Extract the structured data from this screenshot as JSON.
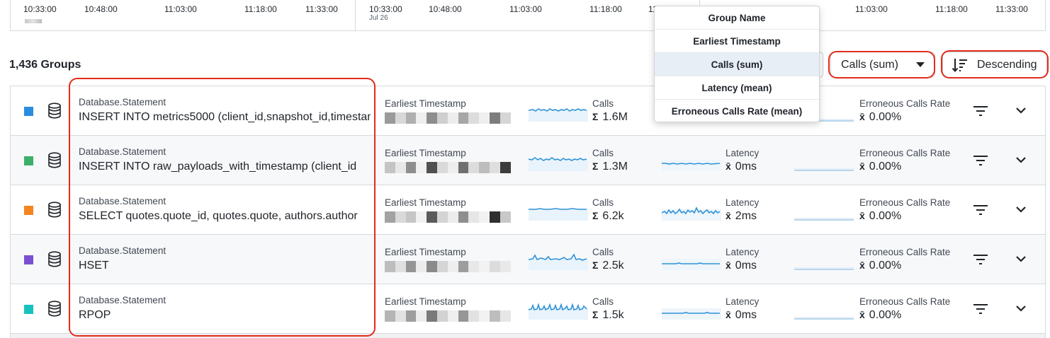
{
  "timeline_left": {
    "ticks": [
      "10:33:00",
      "10:48:00",
      "11:03:00",
      "11:18:00",
      "11:33:00"
    ]
  },
  "timeline_right": {
    "ticks": [
      "10:33:00",
      "10:48:00",
      "11:03:00",
      "11:18:00",
      "11:33:00"
    ],
    "sub": "Jul 26",
    "ticks_far": [
      "11:03:00",
      "11:18:00",
      "11:33:00"
    ]
  },
  "header": {
    "groups_count": "1,436 Groups",
    "sort_field": "Calls (sum)",
    "sort_order": "Descending"
  },
  "dropdown": {
    "options": [
      "Group Name",
      "Earliest Timestamp",
      "Calls (sum)",
      "Latency (mean)",
      "Erroneous Calls Rate (mean)"
    ],
    "selected": "Calls (sum)"
  },
  "columns": {
    "name_label": "Database.Statement",
    "timestamp_label": "Earliest Timestamp",
    "calls_label": "Calls",
    "latency_label": "Latency",
    "error_label": "Erroneous Calls Rate",
    "sum_symbol": "Σ",
    "mean_symbol": "x̄"
  },
  "colors": {
    "accent_red": "#e32b19",
    "spark_blue": "#2d93d8",
    "swatches": [
      "#2a8ee0",
      "#3cb06a",
      "#f5851f",
      "#7b4fd1",
      "#17c2bd"
    ]
  },
  "rows": [
    {
      "name": "INSERT INTO metrics5000 (client_id,snapshot_id,timestamp",
      "calls": "1.6M",
      "latency": "",
      "error_rate": "0.00%"
    },
    {
      "name": "INSERT INTO raw_payloads_with_timestamp (client_id",
      "calls": "1.3M",
      "latency": "0ms",
      "error_rate": "0.00%"
    },
    {
      "name": "SELECT quotes.quote_id, quotes.quote, authors.author",
      "calls": "6.2k",
      "latency": "2ms",
      "error_rate": "0.00%"
    },
    {
      "name": "HSET",
      "calls": "2.5k",
      "latency": "0ms",
      "error_rate": "0.00%"
    },
    {
      "name": "RPOP",
      "calls": "1.5k",
      "latency": "0ms",
      "error_rate": "0.00%"
    }
  ]
}
